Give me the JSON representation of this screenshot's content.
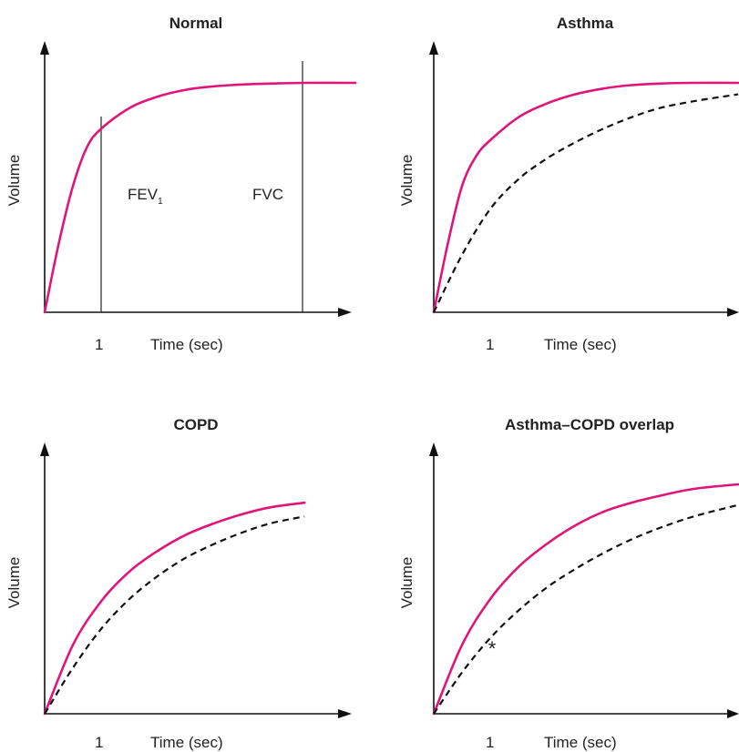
{
  "colors": {
    "predicted": "#e0157a",
    "measured": "#111111",
    "axis": "#111111"
  },
  "chart_data": [
    {
      "type": "line",
      "title": "Normal",
      "xlabel": "Time (sec)",
      "ylabel": "Volume",
      "x_ticks": [
        "1"
      ],
      "xlim": [
        0,
        4.6
      ],
      "ylim": [
        0,
        1.1
      ],
      "annotations": {
        "fev_main": "FEV",
        "fev_sub": "1",
        "fvc": "FVC",
        "fev_x": 1,
        "fvc_x": 4.6
      },
      "series": [
        {
          "style": "solid",
          "x": [
            0,
            0.25,
            0.5,
            0.75,
            1.0,
            1.5,
            2.0,
            2.5,
            3.0,
            3.5,
            4.0,
            4.6,
            5.5
          ],
          "y": [
            0,
            0.3,
            0.55,
            0.72,
            0.8,
            0.89,
            0.94,
            0.97,
            0.985,
            0.993,
            0.997,
            1.0,
            1.0
          ]
        }
      ]
    },
    {
      "type": "line",
      "title": "Asthma",
      "xlabel": "Time (sec)",
      "ylabel": "Volume",
      "x_ticks": [
        "1"
      ],
      "xlim": [
        0,
        5.5
      ],
      "ylim": [
        0,
        1.1
      ],
      "series": [
        {
          "style": "solid",
          "x": [
            0,
            0.25,
            0.5,
            0.75,
            1.0,
            1.5,
            2.0,
            2.5,
            3.0,
            3.5,
            4.0,
            4.6,
            5.5
          ],
          "y": [
            0,
            0.3,
            0.55,
            0.68,
            0.75,
            0.85,
            0.91,
            0.95,
            0.975,
            0.99,
            0.997,
            1.0,
            1.0
          ]
        },
        {
          "style": "dashed",
          "x": [
            0,
            0.5,
            1.0,
            1.5,
            2.0,
            2.5,
            3.0,
            3.5,
            4.0,
            4.6,
            5.5
          ],
          "y": [
            0,
            0.25,
            0.45,
            0.58,
            0.67,
            0.74,
            0.8,
            0.85,
            0.89,
            0.92,
            0.95
          ]
        }
      ]
    },
    {
      "type": "line",
      "title": "COPD",
      "xlabel": "Time (sec)",
      "ylabel": "Volume",
      "x_ticks": [
        "1"
      ],
      "xlim": [
        0,
        5.5
      ],
      "ylim": [
        0,
        1.1
      ],
      "series": [
        {
          "style": "solid",
          "x": [
            0,
            0.5,
            1.0,
            1.5,
            2.0,
            2.5,
            3.0,
            3.5,
            4.0,
            4.6
          ],
          "y": [
            0,
            0.3,
            0.49,
            0.62,
            0.71,
            0.78,
            0.83,
            0.87,
            0.9,
            0.92
          ]
        },
        {
          "style": "dashed",
          "x": [
            0,
            0.5,
            1.0,
            1.5,
            2.0,
            2.5,
            3.0,
            3.5,
            4.0,
            4.6
          ],
          "y": [
            0,
            0.2,
            0.37,
            0.5,
            0.6,
            0.68,
            0.74,
            0.79,
            0.83,
            0.86
          ]
        }
      ]
    },
    {
      "type": "line",
      "title": "Asthma–COPD overlap",
      "xlabel": "Time (sec)",
      "ylabel": "Volume",
      "x_ticks": [
        "1"
      ],
      "xlim": [
        0,
        5.5
      ],
      "ylim": [
        0,
        1.1
      ],
      "annotations": {
        "asterisk": "*",
        "asterisk_x": 1.0,
        "asterisk_y": 0.37
      },
      "series": [
        {
          "style": "solid",
          "x": [
            0,
            0.5,
            1.0,
            1.5,
            2.0,
            2.5,
            3.0,
            3.5,
            4.0,
            4.6,
            5.5
          ],
          "y": [
            0,
            0.3,
            0.5,
            0.64,
            0.74,
            0.82,
            0.88,
            0.92,
            0.95,
            0.98,
            1.0
          ]
        },
        {
          "style": "dashed",
          "x": [
            0,
            0.5,
            1.0,
            1.5,
            2.0,
            2.5,
            3.0,
            3.5,
            4.0,
            4.6,
            5.5
          ],
          "y": [
            0,
            0.18,
            0.33,
            0.45,
            0.55,
            0.63,
            0.7,
            0.76,
            0.81,
            0.86,
            0.91
          ]
        }
      ]
    }
  ]
}
